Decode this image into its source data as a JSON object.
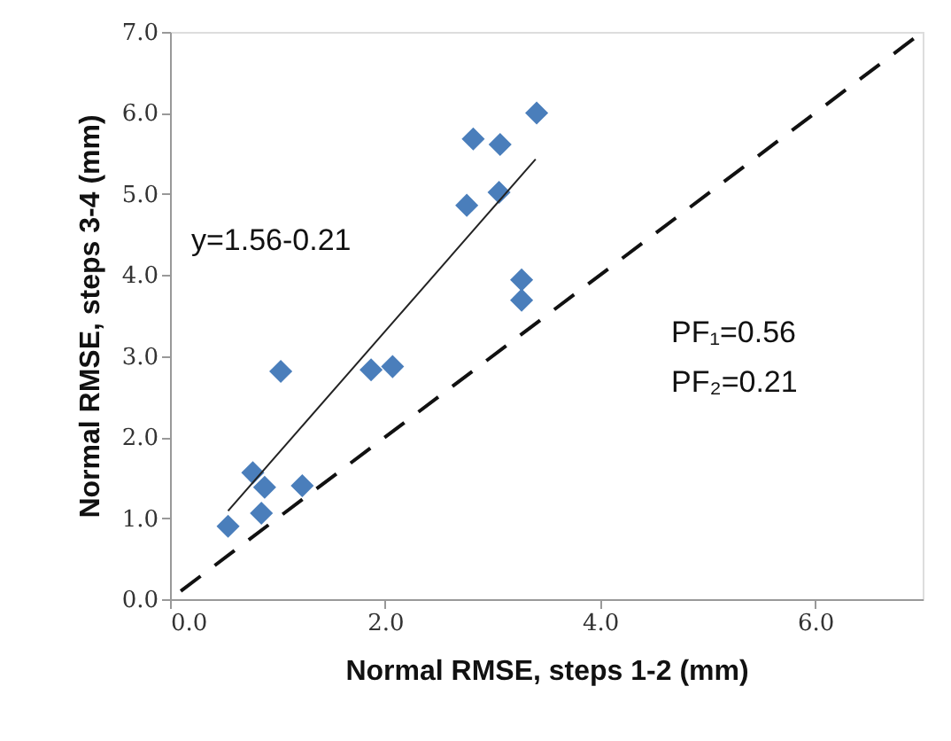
{
  "chart_data": {
    "type": "scatter",
    "xlabel": "Normal RMSE, steps 1-2 (mm)",
    "ylabel": "Normal RMSE, steps 3-4 (mm)",
    "xlim": [
      0,
      7
    ],
    "ylim": [
      0,
      7
    ],
    "xticks": [
      {
        "value": 0,
        "label": "0.0"
      },
      {
        "value": 2,
        "label": "2.0"
      },
      {
        "value": 4,
        "label": "4.0"
      },
      {
        "value": 6,
        "label": "6.0"
      }
    ],
    "yticks": [
      {
        "value": 0,
        "label": "0.0"
      },
      {
        "value": 1,
        "label": "1.0"
      },
      {
        "value": 2,
        "label": "2.0"
      },
      {
        "value": 3,
        "label": "3.0"
      },
      {
        "value": 4,
        "label": "4.0"
      },
      {
        "value": 5,
        "label": "5.0"
      },
      {
        "value": 6,
        "label": "6.0"
      },
      {
        "value": 7,
        "label": "7.0"
      }
    ],
    "grid": false,
    "series": [
      {
        "marker": "diamond",
        "color": "#4a7ebb",
        "x": [
          0.54,
          0.77,
          0.88,
          0.85,
          1.23,
          1.03,
          1.87,
          2.07,
          2.76,
          2.82,
          3.07,
          3.06,
          3.27,
          3.27,
          3.41
        ],
        "values": [
          0.9,
          1.56,
          1.38,
          1.06,
          1.4,
          2.81,
          2.83,
          2.87,
          4.86,
          5.68,
          5.61,
          5.02,
          3.94,
          3.69,
          6.0
        ]
      },
      {
        "type": "line",
        "marker": "none",
        "color": "#222222",
        "line_style": "solid",
        "x": [
          0.54,
          3.4
        ],
        "values": [
          1.09,
          5.43
        ]
      },
      {
        "type": "line",
        "marker": "none",
        "color": "#111111",
        "line_style": "dashed",
        "x": [
          0.1,
          7
        ],
        "values": [
          0.1,
          7
        ]
      }
    ],
    "annotations": [
      "y=1.56-0.21",
      "PF₁=0.56",
      "PF₂=0.21"
    ]
  }
}
